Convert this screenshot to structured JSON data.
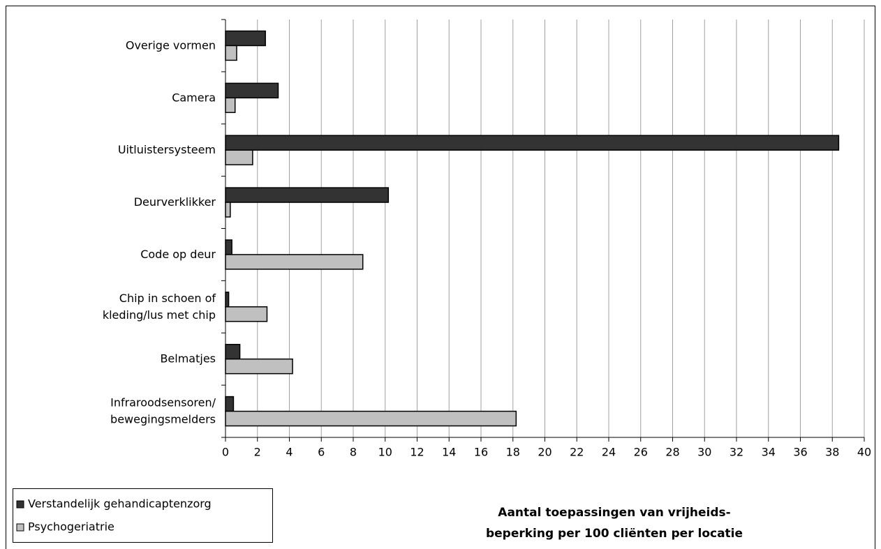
{
  "chart_data": {
    "type": "hbar",
    "title": "Aantal toepassingen van vrijheids-\nbeperking per 100 cliënten per locatie",
    "categories": [
      "Overige vormen",
      "Camera",
      "Uitluistersysteem",
      "Deurverklikker",
      "Code op deur",
      "Chip in schoen of\nkleding/lus met chip",
      "Belmatjes",
      "Infraroodsensoren/\nbewegingsmelders"
    ],
    "series": [
      {
        "name": "Verstandelijk gehandicaptenzorg",
        "color": "#333333",
        "values": [
          2.5,
          3.3,
          38.4,
          10.2,
          0.4,
          0.2,
          0.9,
          0.5
        ]
      },
      {
        "name": "Psychogeriatrie",
        "color": "#c0c0c0",
        "values": [
          0.7,
          0.6,
          1.7,
          0.3,
          8.6,
          2.6,
          4.2,
          18.2
        ]
      }
    ],
    "xlim": [
      0,
      40
    ],
    "xticks": [
      0,
      2,
      4,
      6,
      8,
      10,
      12,
      14,
      16,
      18,
      20,
      22,
      24,
      26,
      28,
      30,
      32,
      34,
      36,
      38,
      40
    ],
    "grid": true,
    "legend": "bottom-left"
  }
}
